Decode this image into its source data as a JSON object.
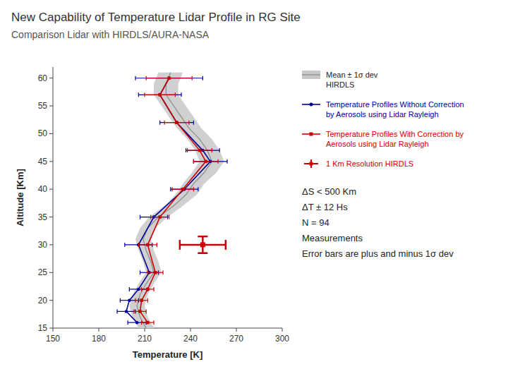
{
  "chart_data": {
    "type": "line",
    "title": "New Capability of Temperature Lidar Profile in RG Site",
    "subtitle": "Comparison Lidar with HIRDLS/AURA-NASA",
    "x_label": "Temperature [K]",
    "y_label": "Altitude [Km]",
    "xlim": [
      150,
      300
    ],
    "ylim": [
      15,
      62
    ],
    "xticks": [
      150,
      180,
      210,
      240,
      270,
      300
    ],
    "yticks": [
      15,
      20,
      25,
      30,
      35,
      40,
      45,
      50,
      55,
      60
    ],
    "grid": false,
    "legend": "right",
    "annotations": [
      "ΔS < 500 Km",
      "ΔT ± 12 Hs",
      "N = 94",
      "Measurements",
      "Error bars are plus and minus 1σ dev"
    ],
    "series": [
      {
        "name": "Mean ± 1σ dev\nHIRDLS",
        "type": "area",
        "color": "#c8c8c8",
        "x": [
          211,
          207,
          205,
          207,
          211,
          216,
          214,
          211,
          209,
          212,
          219,
          229,
          237,
          242,
          249,
          254,
          251,
          246,
          239,
          234,
          229,
          224,
          224,
          227
        ],
        "x_errors": [
          5,
          5,
          5,
          5,
          5,
          5,
          5,
          5,
          5,
          5,
          6,
          6,
          7,
          7,
          8,
          8,
          8,
          8,
          8,
          8,
          8,
          8,
          8,
          8
        ],
        "values": [
          15,
          17,
          19,
          21,
          23,
          25,
          27,
          29,
          31,
          33,
          35,
          37,
          39,
          41,
          43,
          45,
          47,
          49,
          51,
          53,
          55,
          57,
          59,
          61
        ]
      },
      {
        "name": "Temperature Profiles Without Correction\nby Aerosols using Lidar Rayleigh",
        "type": "line",
        "color": "#000099",
        "marker": "circle",
        "line_style": "solid",
        "x": [
          205,
          198,
          200,
          206,
          213,
          206,
          216,
          236,
          253,
          248,
          231,
          220,
          226
        ],
        "x_errors": [
          6,
          6,
          6,
          6,
          6,
          9,
          9,
          9,
          11,
          11,
          11,
          14,
          22
        ],
        "values": [
          16,
          18,
          20,
          22,
          25,
          30,
          35,
          40,
          45,
          47,
          52,
          57,
          60
        ]
      },
      {
        "name": "Temperature Profiles With Correction by\nAerosols using Lidar Rayleigh",
        "type": "line",
        "color": "#cc0000",
        "marker": "square",
        "line_style": "solid",
        "x": [
          212,
          207,
          208,
          212,
          217,
          212,
          220,
          235,
          250,
          246,
          231,
          220,
          226
        ],
        "x_errors": [
          4,
          4,
          4,
          4,
          5,
          6,
          6,
          7,
          8,
          8,
          8,
          10,
          15
        ],
        "values": [
          16,
          18,
          20,
          22,
          25,
          30,
          35,
          40,
          45,
          47,
          52,
          57,
          60
        ]
      },
      {
        "name": "1 Km Resolution HIRDLS",
        "type": "scatter",
        "color": "#cc0000",
        "marker": "square",
        "x": [
          248
        ],
        "x_errors": [
          15
        ],
        "values": [
          30
        ],
        "y_errors": [
          1.5
        ]
      }
    ]
  }
}
